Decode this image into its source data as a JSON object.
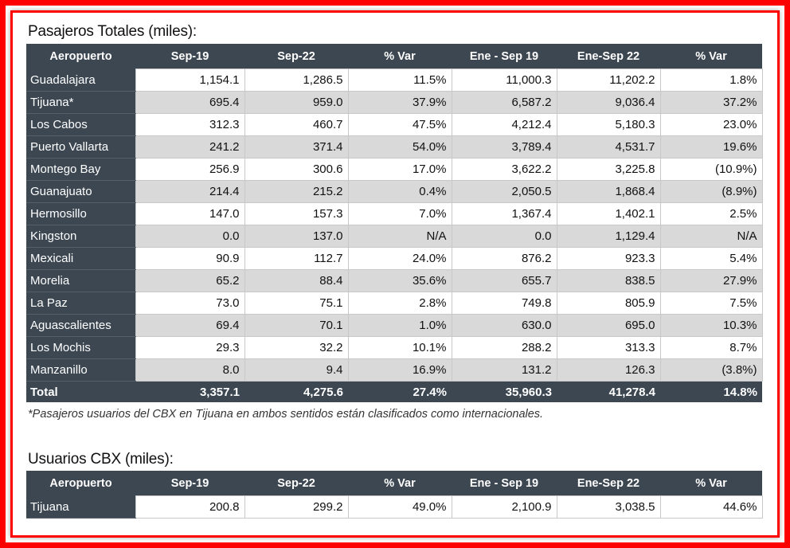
{
  "passengers": {
    "title": "Pasajeros Totales (miles):",
    "headers": [
      "Aeropuerto",
      "Sep-19",
      "Sep-22",
      "% Var",
      "Ene - Sep  19",
      "Ene-Sep 22",
      "% Var"
    ],
    "rows": [
      [
        "Guadalajara",
        "1,154.1",
        "1,286.5",
        "11.5%",
        "11,000.3",
        "11,202.2",
        "1.8%"
      ],
      [
        "Tijuana*",
        "695.4",
        "959.0",
        "37.9%",
        "6,587.2",
        "9,036.4",
        "37.2%"
      ],
      [
        "Los Cabos",
        "312.3",
        "460.7",
        "47.5%",
        "4,212.4",
        "5,180.3",
        "23.0%"
      ],
      [
        "Puerto Vallarta",
        "241.2",
        "371.4",
        "54.0%",
        "3,789.4",
        "4,531.7",
        "19.6%"
      ],
      [
        "Montego Bay",
        "256.9",
        "300.6",
        "17.0%",
        "3,622.2",
        "3,225.8",
        "(10.9%)"
      ],
      [
        "Guanajuato",
        "214.4",
        "215.2",
        "0.4%",
        "2,050.5",
        "1,868.4",
        "(8.9%)"
      ],
      [
        "Hermosillo",
        "147.0",
        "157.3",
        "7.0%",
        "1,367.4",
        "1,402.1",
        "2.5%"
      ],
      [
        "Kingston",
        "0.0",
        "137.0",
        "N/A",
        "0.0",
        "1,129.4",
        "N/A"
      ],
      [
        "Mexicali",
        "90.9",
        "112.7",
        "24.0%",
        "876.2",
        "923.3",
        "5.4%"
      ],
      [
        "Morelia",
        "65.2",
        "88.4",
        "35.6%",
        "655.7",
        "838.5",
        "27.9%"
      ],
      [
        "La Paz",
        "73.0",
        "75.1",
        "2.8%",
        "749.8",
        "805.9",
        "7.5%"
      ],
      [
        "Aguascalientes",
        "69.4",
        "70.1",
        "1.0%",
        "630.0",
        "695.0",
        "10.3%"
      ],
      [
        "Los Mochis",
        "29.3",
        "32.2",
        "10.1%",
        "288.2",
        "313.3",
        "8.7%"
      ],
      [
        "Manzanillo",
        "8.0",
        "9.4",
        "16.9%",
        "131.2",
        "126.3",
        "(3.8%)"
      ]
    ],
    "total": [
      "Total",
      "3,357.1",
      "4,275.6",
      "27.4%",
      "35,960.3",
      "41,278.4",
      "14.8%"
    ],
    "footnote": "*Pasajeros usuarios del CBX en Tijuana en ambos sentidos están clasificados como internacionales."
  },
  "cbx": {
    "title": "Usuarios CBX (miles):",
    "headers": [
      "Aeropuerto",
      "Sep-19",
      "Sep-22",
      "% Var",
      "Ene - Sep  19",
      "Ene-Sep 22",
      "% Var"
    ],
    "rows": [
      [
        "Tijuana",
        "200.8",
        "299.2",
        "49.0%",
        "2,100.9",
        "3,038.5",
        "44.6%"
      ]
    ]
  },
  "colors": {
    "header": "#3c4752",
    "shade": "#d9d9d9",
    "frame": "#ff0000"
  }
}
